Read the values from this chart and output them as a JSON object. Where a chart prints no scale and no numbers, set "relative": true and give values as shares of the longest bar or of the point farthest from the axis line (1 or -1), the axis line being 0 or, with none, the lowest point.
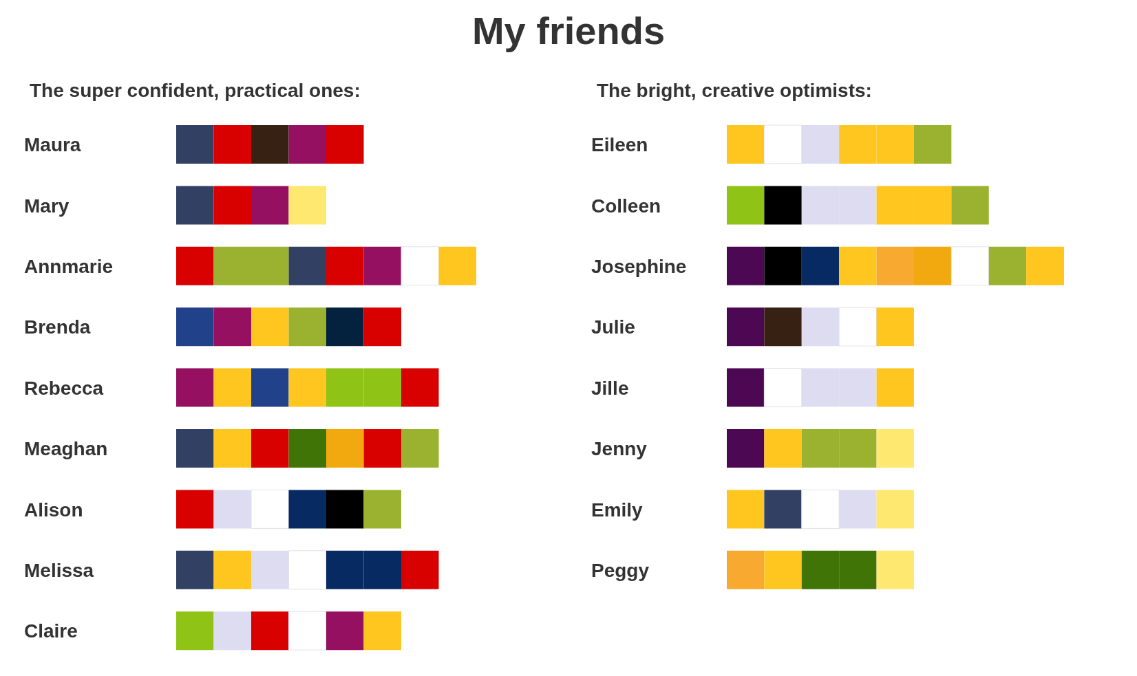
{
  "chart_data": [
    {
      "type": "bar",
      "orientation": "horizontal",
      "stacked": true,
      "relative": true,
      "title": "My friends",
      "subtitle": "The super confident, practical ones:",
      "categories": [
        "Maura",
        "Mary",
        "Annmarie",
        "Brenda",
        "Rebecca",
        "Meaghan",
        "Alison",
        "Melissa",
        "Claire"
      ],
      "series": [
        {
          "values": [
            0.125,
            0.125,
            0.125,
            0.125,
            0.125,
            0.125,
            0.125,
            0.125,
            0.125
          ],
          "colors": [
            "#324063",
            "#324063",
            "#d90000",
            "#21418a",
            "#951060",
            "#324063",
            "#d90000",
            "#324063",
            "#8fc315"
          ]
        },
        {
          "values": [
            0.125,
            0.125,
            0.125,
            0.125,
            0.125,
            0.125,
            0.125,
            0.125,
            0.125
          ],
          "colors": [
            "#d90000",
            "#d90000",
            "#9ab22f",
            "#951060",
            "#fec61e",
            "#fec61e",
            "#dedcf0",
            "#fec61e",
            "#dedcf0"
          ]
        },
        {
          "values": [
            0.125,
            0.125,
            0.125,
            0.125,
            0.125,
            0.125,
            0.125,
            0.125,
            0.125
          ],
          "colors": [
            "#372112",
            "#951060",
            "#9ab22f",
            "#fec61e",
            "#21418a",
            "#d90000",
            "#ffffff",
            "#dedcf0",
            "#d90000"
          ]
        },
        {
          "values": [
            0.125,
            0.125,
            0.125,
            0.125,
            0.125,
            0.125,
            0.125,
            0.125,
            0.125
          ],
          "colors": [
            "#951060",
            "#ffe870",
            "#324063",
            "#9ab22f",
            "#fec61e",
            "#417407",
            "#082a62",
            "#ffffff",
            "#ffffff"
          ]
        },
        {
          "values": [
            0.125,
            null,
            0.125,
            0.125,
            0.125,
            0.125,
            0.125,
            0.125,
            0.125
          ],
          "colors": [
            "#d90000",
            null,
            "#d90000",
            "#04223e",
            "#8fc315",
            "#f2a910",
            "#000000",
            "#082a62",
            "#951060"
          ]
        },
        {
          "values": [
            null,
            null,
            0.125,
            0.125,
            0.125,
            0.125,
            0.125,
            0.125,
            0.125
          ],
          "colors": [
            null,
            null,
            "#951060",
            "#d90000",
            "#8fc315",
            "#d90000",
            "#9ab22f",
            "#082a62",
            "#fec61e"
          ]
        },
        {
          "values": [
            null,
            null,
            0.125,
            null,
            0.125,
            0.125,
            null,
            0.125,
            null
          ],
          "colors": [
            null,
            null,
            "#ffffff",
            null,
            "#d90000",
            "#9ab22f",
            null,
            "#d90000",
            null
          ]
        },
        {
          "values": [
            null,
            null,
            0.125,
            null,
            null,
            null,
            null,
            null,
            null
          ],
          "colors": [
            null,
            null,
            "#fec61e",
            null,
            null,
            null,
            null,
            null,
            null
          ]
        }
      ]
    },
    {
      "type": "bar",
      "orientation": "horizontal",
      "stacked": true,
      "relative": true,
      "subtitle": "The bright, creative optimists:",
      "categories": [
        "Eileen",
        "Colleen",
        "Josephine",
        "Julie",
        "Jille",
        "Jenny",
        "Emily",
        "Peggy"
      ],
      "series": [
        {
          "values": [
            0.111,
            0.111,
            0.111,
            0.111,
            0.111,
            0.111,
            0.111,
            0.111
          ],
          "colors": [
            "#fec61e",
            "#8fc315",
            "#4d0854",
            "#4d0854",
            "#4d0854",
            "#4d0854",
            "#fec61e",
            "#f7a930"
          ]
        },
        {
          "values": [
            0.111,
            0.111,
            0.111,
            0.111,
            0.111,
            0.111,
            0.111,
            0.111
          ],
          "colors": [
            "#ffffff",
            "#000000",
            "#000000",
            "#372112",
            "#ffffff",
            "#fec61e",
            "#324063",
            "#fec61e"
          ]
        },
        {
          "values": [
            0.111,
            0.111,
            0.111,
            0.111,
            0.111,
            0.111,
            0.111,
            0.111
          ],
          "colors": [
            "#dedcf0",
            "#dedcf0",
            "#082a62",
            "#dedcf0",
            "#dedcf0",
            "#9ab22f",
            "#ffffff",
            "#417407"
          ]
        },
        {
          "values": [
            0.111,
            0.111,
            0.111,
            0.111,
            0.111,
            0.111,
            0.111,
            0.111
          ],
          "colors": [
            "#fec61e",
            "#dedcf0",
            "#fec61e",
            "#ffffff",
            "#dedcf0",
            "#9ab22f",
            "#dedcf0",
            "#417407"
          ]
        },
        {
          "values": [
            0.111,
            0.111,
            0.111,
            0.111,
            0.111,
            0.111,
            0.111,
            0.111
          ],
          "colors": [
            "#fec61e",
            "#fec61e",
            "#f7a930",
            "#fec61e",
            "#fec61e",
            "#ffe870",
            "#ffe870",
            "#ffe870"
          ]
        },
        {
          "values": [
            0.111,
            0.111,
            0.111,
            null,
            null,
            null,
            null,
            null
          ],
          "colors": [
            "#9ab22f",
            "#fec61e",
            "#f2a910",
            null,
            null,
            null,
            null,
            null
          ]
        },
        {
          "values": [
            null,
            0.111,
            0.111,
            null,
            null,
            null,
            null,
            null
          ],
          "colors": [
            null,
            "#9ab22f",
            "#ffffff",
            null,
            null,
            null,
            null,
            null
          ]
        },
        {
          "values": [
            null,
            null,
            0.111,
            null,
            null,
            null,
            null,
            null
          ],
          "colors": [
            null,
            null,
            "#9ab22f",
            null,
            null,
            null,
            null,
            null
          ]
        },
        {
          "values": [
            null,
            null,
            0.112,
            null,
            null,
            null,
            null,
            null
          ],
          "colors": [
            null,
            null,
            "#fec61e",
            null,
            null,
            null,
            null,
            null
          ]
        }
      ]
    }
  ]
}
